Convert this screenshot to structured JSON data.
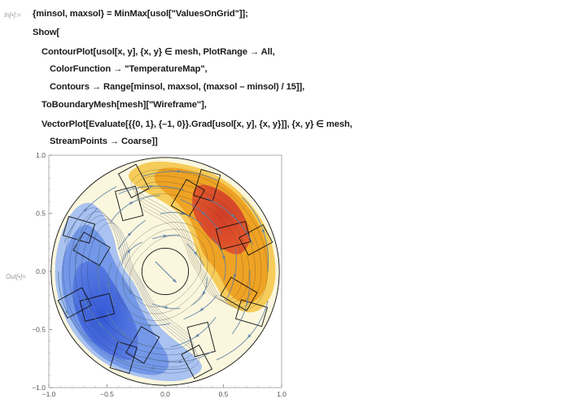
{
  "cells": {
    "input_label": "In[•]:=",
    "output_label": "Out[•]="
  },
  "code_lines": [
    "{minsol, maxsol} = MinMax[usol[\"ValuesOnGrid\"]];",
    "Show[",
    "ContourPlot[usol[x, y], {x, y} ∈ mesh, PlotRange → All,",
    "ColorFunction → \"TemperatureMap\",",
    "Contours → Range[minsol, maxsol, (maxsol – minsol) / 15]],",
    "ToBoundaryMesh[mesh][\"Wireframe\"],",
    "VectorPlot[Evaluate[{{0, 1}, {–1, 0}}.Grad[usol[x, y], {x, y}]], {x, y} ∈ mesh,",
    "StreamPoints → Coarse]]"
  ],
  "chart_data": {
    "type": "heatmap",
    "xlim": [
      -1.0,
      1.0
    ],
    "ylim": [
      -1.0,
      1.0
    ],
    "x_ticks": [
      "−1.0",
      "−0.5",
      "0.0",
      "0.5",
      "1.0"
    ],
    "y_ticks": [
      "1.0",
      "0.5",
      "0.0",
      "−0.5",
      "−1.0"
    ],
    "x_tick_values": [
      -1.0,
      -0.5,
      0.0,
      0.5,
      1.0
    ],
    "y_tick_values": [
      1.0,
      0.5,
      0.0,
      -0.5,
      -1.0
    ],
    "outer_radius": 0.98,
    "inner_radius": 0.2,
    "slot_count": 8,
    "colors": {
      "hot": "#d8432a",
      "warm": "#f0a020",
      "neutral": "#fbf7de",
      "cool": "#8fb2ee",
      "cold": "#3d63d9",
      "stream": "#5b7fa6",
      "wire": "#111111"
    }
  }
}
